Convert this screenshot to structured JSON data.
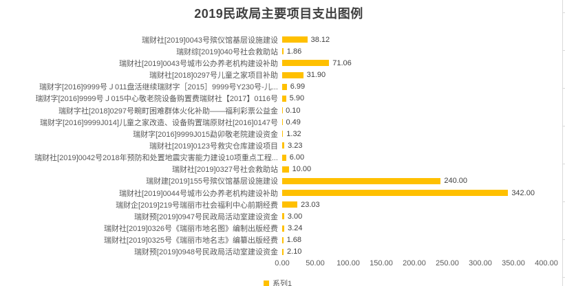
{
  "colors": {
    "bar": "#FFC000",
    "title": "#404040",
    "category_label": "#595959",
    "value_label": "#404040",
    "sheet_grid": "#d9d9d9"
  },
  "legend": {
    "series1_label": "系列1"
  },
  "chart_data": {
    "type": "bar",
    "orientation": "horizontal",
    "title": "2019民政局主要项目支出图例",
    "xlabel": "",
    "ylabel": "",
    "xlim": [
      0,
      400
    ],
    "grid": false,
    "legend_position": "bottom",
    "legend_entries": [
      "系列1"
    ],
    "x_ticks": [
      "0.00",
      "50.00",
      "100.00",
      "150.00",
      "200.00",
      "250.00",
      "300.00",
      "350.00",
      "400.00"
    ],
    "categories": [
      "瑞财社[2019]0043号殡仪馆基层设施建设",
      "瑞财综[2019]040号社会救助站",
      "瑞财社[2019]0043号城市公办养老机构建设补助",
      "瑞财社[2018]0297号儿童之家项目补助",
      "瑞财字[2016]9999号Ｊ011盘活继续瑞财字［2015］9999号Y230号-儿...",
      "瑞财字[2016]9999号Ｊ015中心敬老院设备购置费瑞财社【2017】0116号",
      "瑞财字社[2018]0297号畹町困难群体火化补助——福利彩票公益金",
      "瑞财字[2016]9999J014]儿童之家改造、设备购置瑞原财社[2016]0147号",
      "瑞财字[2016]9999J015勐卯敬老院建设资金",
      "瑞财社[2019]0123号救灾仓库建设项目",
      "瑞财社[2019]0042号2018年预防和处置地震灾害能力建设10项重点工程...",
      "瑞财社[2019]0327号社会救助站",
      "瑞财建[2019]155号殡仪馆基层设施建设",
      "瑞财社[2019]0044号城市公办养老机构建设补助",
      "瑞财企[2019]219号瑞丽市社会福利中心前期经费",
      "瑞财预[2019]0947号民政局活动室建设资金",
      "瑞财社[2019]0326号《瑞丽市地名图》编制出版经费",
      "瑞财社[2019]0325号《瑞丽市地名志》编纂出版经费",
      "瑞财预[2019]0948号民政局活动室建设资金"
    ],
    "values": [
      38.12,
      1.86,
      71.06,
      31.9,
      6.99,
      5.9,
      0.1,
      0.49,
      1.32,
      3.23,
      6.0,
      10.0,
      240.0,
      342.0,
      23.03,
      3.0,
      3.24,
      1.68,
      2.1
    ],
    "value_labels": [
      "38.12",
      "1.86",
      "71.06",
      "31.90",
      "6.99",
      "5.90",
      "0.10",
      "0.49",
      "1.32",
      "3.23",
      "6.00",
      "10.00",
      "240.00",
      "342.00",
      "23.03",
      "3.00",
      "3.24",
      "1.68",
      "2.10"
    ]
  }
}
